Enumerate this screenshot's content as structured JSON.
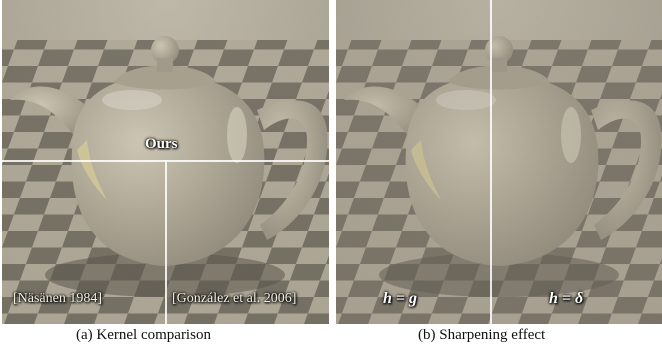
{
  "figure": {
    "panel_a": {
      "labels": {
        "center": "Ours",
        "bottom_left": "[Näsänen 1984]",
        "bottom_right": "[González et al. 2006]"
      },
      "caption": "(a) Kernel comparison"
    },
    "panel_b": {
      "labels": {
        "bottom_left": "h = g",
        "bottom_right": "h = δ"
      },
      "caption": "(b) Sharpening effect"
    }
  },
  "colors": {
    "floor_light": "#bfb8a6",
    "floor_dark": "#5c574d",
    "teapot": "#c9c2b0",
    "highlight": "#f4e7a6",
    "divider": "#ffffff"
  }
}
